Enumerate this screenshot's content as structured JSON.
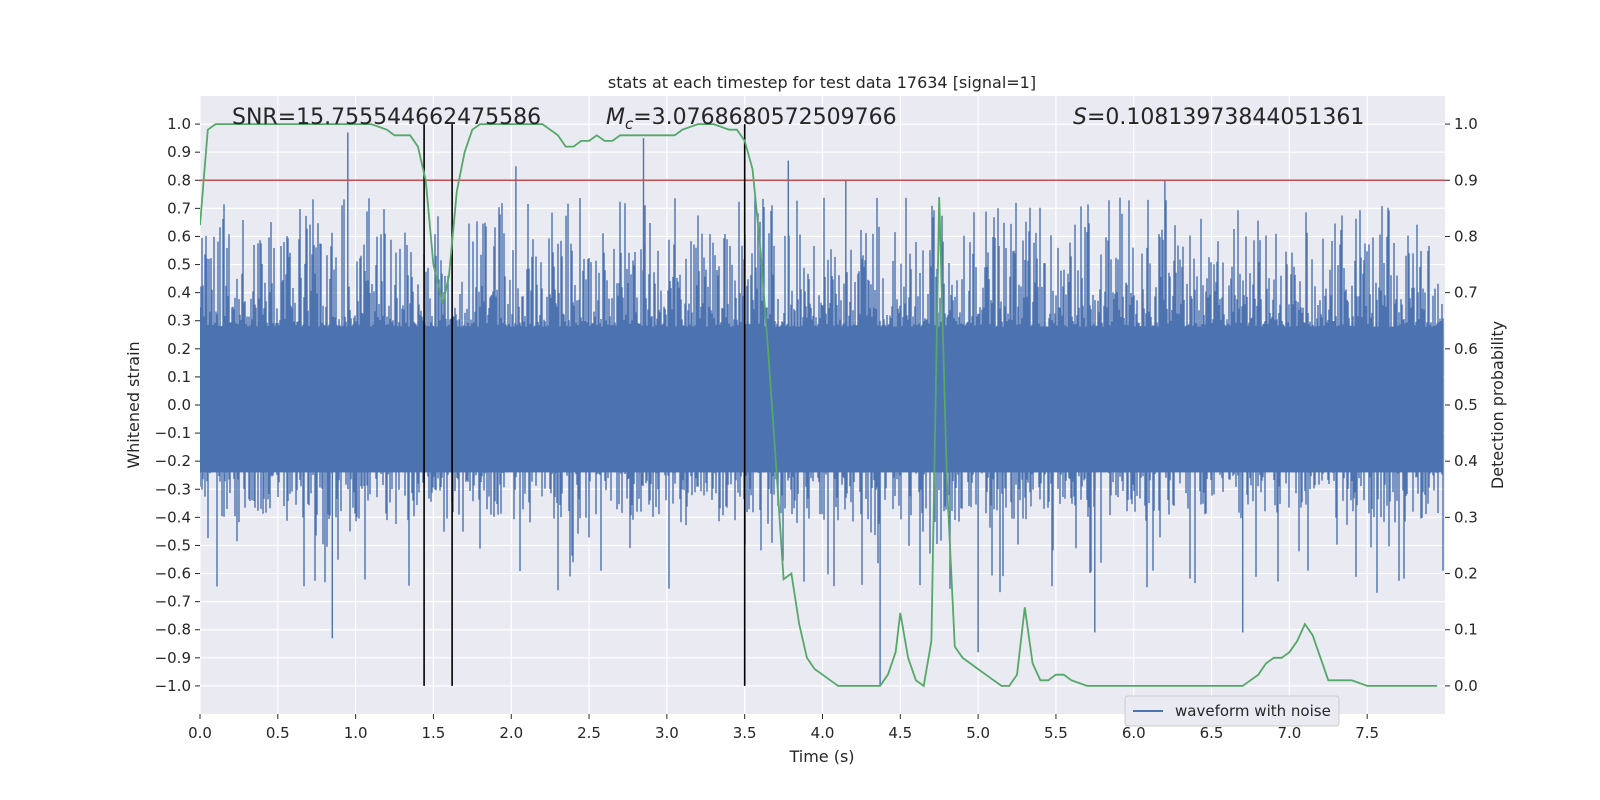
{
  "chart_data": {
    "type": "line",
    "title": "stats at each timestep for test data 17634 [signal=1]",
    "xlabel": "Time (s)",
    "ylabel_left": "Whitened strain",
    "ylabel_right": "Detection probability",
    "xlim": [
      0.0,
      8.0
    ],
    "ylim_left": [
      -1.1,
      1.1
    ],
    "ylim_right": [
      -0.05,
      1.05
    ],
    "xticks": [
      "0.0",
      "0.5",
      "1.0",
      "1.5",
      "2.0",
      "2.5",
      "3.0",
      "3.5",
      "4.0",
      "4.5",
      "5.0",
      "5.5",
      "6.0",
      "6.5",
      "7.0",
      "7.5"
    ],
    "yticks_left": [
      "1.0",
      "0.9",
      "0.8",
      "0.7",
      "0.6",
      "0.5",
      "0.4",
      "0.3",
      "0.2",
      "0.1",
      "0.0",
      "-0.1",
      "-0.2",
      "-0.3",
      "-0.4",
      "-0.5",
      "-0.6",
      "-0.7",
      "-0.8",
      "-0.9",
      "-1.0"
    ],
    "yticks_right": [
      "1.0",
      "0.9",
      "0.8",
      "0.7",
      "0.6",
      "0.5",
      "0.4",
      "0.3",
      "0.2",
      "0.1",
      "0.0"
    ],
    "grid": true,
    "legend_position": "lower-right",
    "annotations": {
      "snr": "SNR=15.755544662475586",
      "mc_symbol": "M",
      "mc_sub": "c",
      "mc_value": "=3.0768680572509766",
      "s_symbol": "S",
      "s_value": "=0.10813973844051361"
    },
    "threshold_line": {
      "y": 0.9,
      "axis": "right",
      "color": "#c44e52"
    },
    "vertical_markers": [
      1.44,
      1.62,
      3.5
    ],
    "series": [
      {
        "name": "waveform with noise",
        "axis": "left",
        "color": "#4c72b0",
        "kind": "noise-band",
        "band_min": -0.42,
        "band_max": 0.62,
        "spike_extremes_pos": [
          [
            0.95,
            0.97
          ],
          [
            2.03,
            0.85
          ],
          [
            2.85,
            0.95
          ],
          [
            3.78,
            0.87
          ],
          [
            4.15,
            0.8
          ],
          [
            6.2,
            0.8
          ]
        ],
        "spike_extremes_neg": [
          [
            0.85,
            -0.83
          ],
          [
            4.37,
            -1.0
          ],
          [
            5.0,
            -0.88
          ],
          [
            5.75,
            -0.81
          ],
          [
            6.7,
            -0.81
          ]
        ]
      },
      {
        "name": "",
        "axis": "right",
        "color": "#55a868",
        "x": [
          0.0,
          0.05,
          0.1,
          0.2,
          0.3,
          0.4,
          0.5,
          0.6,
          0.7,
          0.8,
          0.9,
          1.0,
          1.1,
          1.2,
          1.25,
          1.3,
          1.35,
          1.4,
          1.45,
          1.5,
          1.56,
          1.6,
          1.65,
          1.7,
          1.75,
          1.8,
          1.9,
          2.0,
          2.1,
          2.2,
          2.25,
          2.3,
          2.35,
          2.4,
          2.45,
          2.5,
          2.55,
          2.6,
          2.65,
          2.7,
          2.75,
          2.8,
          2.85,
          2.9,
          2.95,
          3.0,
          3.05,
          3.1,
          3.2,
          3.3,
          3.4,
          3.45,
          3.5,
          3.55,
          3.6,
          3.65,
          3.7,
          3.75,
          3.8,
          3.85,
          3.9,
          3.95,
          4.0,
          4.05,
          4.1,
          4.2,
          4.3,
          4.37,
          4.42,
          4.47,
          4.5,
          4.55,
          4.6,
          4.65,
          4.7,
          4.75,
          4.8,
          4.85,
          4.9,
          4.95,
          5.0,
          5.05,
          5.1,
          5.15,
          5.2,
          5.25,
          5.3,
          5.35,
          5.4,
          5.45,
          5.5,
          5.55,
          5.6,
          5.7,
          5.8,
          5.9,
          6.0,
          6.1,
          6.2,
          6.3,
          6.4,
          6.5,
          6.6,
          6.7,
          6.75,
          6.8,
          6.85,
          6.9,
          6.95,
          7.0,
          7.05,
          7.1,
          7.15,
          7.2,
          7.25,
          7.3,
          7.4,
          7.5,
          7.6,
          7.7,
          7.8,
          7.9,
          7.95
        ],
        "y": [
          0.82,
          0.99,
          1.0,
          1.0,
          1.0,
          1.0,
          1.0,
          1.0,
          1.0,
          1.0,
          1.0,
          1.0,
          1.0,
          0.99,
          0.98,
          0.98,
          0.98,
          0.96,
          0.9,
          0.75,
          0.68,
          0.73,
          0.88,
          0.95,
          0.99,
          1.0,
          1.0,
          1.0,
          1.0,
          1.0,
          0.99,
          0.98,
          0.96,
          0.96,
          0.97,
          0.97,
          0.98,
          0.97,
          0.97,
          0.98,
          0.98,
          0.98,
          0.98,
          0.98,
          0.98,
          0.98,
          0.98,
          0.99,
          1.0,
          1.0,
          0.99,
          0.99,
          0.97,
          0.92,
          0.78,
          0.6,
          0.4,
          0.19,
          0.2,
          0.11,
          0.05,
          0.03,
          0.02,
          0.01,
          0.0,
          0.0,
          0.0,
          0.0,
          0.02,
          0.06,
          0.13,
          0.05,
          0.01,
          0.0,
          0.08,
          0.87,
          0.36,
          0.07,
          0.05,
          0.04,
          0.03,
          0.02,
          0.01,
          0.0,
          0.0,
          0.02,
          0.14,
          0.04,
          0.01,
          0.01,
          0.02,
          0.02,
          0.01,
          0.0,
          0.0,
          0.0,
          0.0,
          0.0,
          0.0,
          0.0,
          0.0,
          0.0,
          0.0,
          0.0,
          0.01,
          0.02,
          0.04,
          0.05,
          0.05,
          0.06,
          0.08,
          0.11,
          0.09,
          0.05,
          0.01,
          0.01,
          0.01,
          0.0,
          0.0,
          0.0,
          0.0,
          0.0,
          0.0
        ]
      }
    ]
  }
}
